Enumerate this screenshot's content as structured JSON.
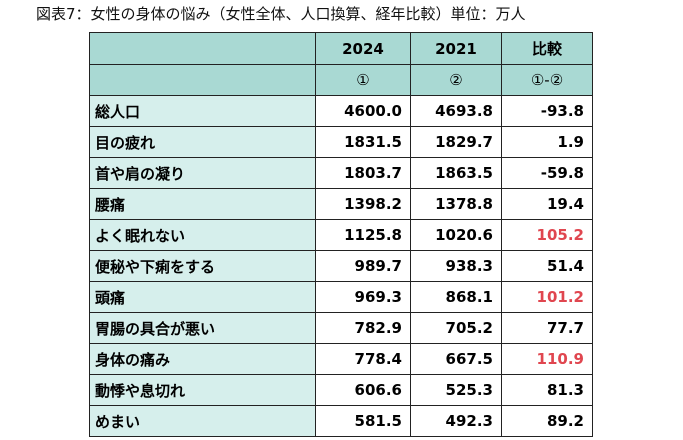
{
  "caption": "図表7：女性の身体の悩み（女性全体、人口換算、経年比較）単位：万人",
  "table": {
    "header": [
      "",
      "2024",
      "2021",
      "比較"
    ],
    "subheader": [
      "",
      "①",
      "②",
      "①-②"
    ],
    "rows": [
      {
        "label": "総人口",
        "v2024": "4600.0",
        "v2021": "4693.8",
        "diff": "-93.8",
        "highlight": false
      },
      {
        "label": "目の疲れ",
        "v2024": "1831.5",
        "v2021": "1829.7",
        "diff": "1.9",
        "highlight": false
      },
      {
        "label": "首や肩の凝り",
        "v2024": "1803.7",
        "v2021": "1863.5",
        "diff": "-59.8",
        "highlight": false
      },
      {
        "label": "腰痛",
        "v2024": "1398.2",
        "v2021": "1378.8",
        "diff": "19.4",
        "highlight": false
      },
      {
        "label": "よく眠れない",
        "v2024": "1125.8",
        "v2021": "1020.6",
        "diff": "105.2",
        "highlight": true
      },
      {
        "label": "便秘や下痢をする",
        "v2024": "989.7",
        "v2021": "938.3",
        "diff": "51.4",
        "highlight": false
      },
      {
        "label": "頭痛",
        "v2024": "969.3",
        "v2021": "868.1",
        "diff": "101.2",
        "highlight": true
      },
      {
        "label": "胃腸の具合が悪い",
        "v2024": "782.9",
        "v2021": "705.2",
        "diff": "77.7",
        "highlight": false
      },
      {
        "label": "身体の痛み",
        "v2024": "778.4",
        "v2021": "667.5",
        "diff": "110.9",
        "highlight": true
      },
      {
        "label": "動悸や息切れ",
        "v2024": "606.6",
        "v2021": "525.3",
        "diff": "81.3",
        "highlight": false
      },
      {
        "label": "めまい",
        "v2024": "581.5",
        "v2021": "492.3",
        "diff": "89.2",
        "highlight": false
      }
    ]
  },
  "colors": {
    "header_fill": "#a9d9d3",
    "label_fill": "#d6efec",
    "highlight_text": "#e0464f"
  }
}
